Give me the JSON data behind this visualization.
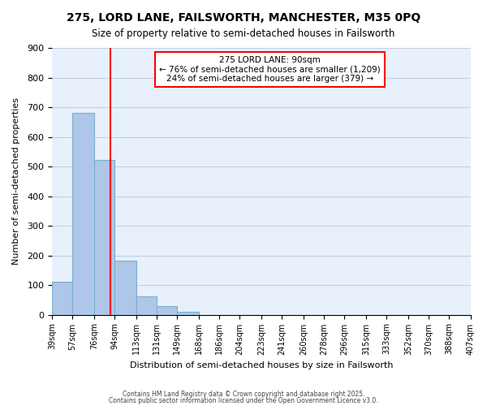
{
  "title1": "275, LORD LANE, FAILSWORTH, MANCHESTER, M35 0PQ",
  "title2": "Size of property relative to semi-detached houses in Failsworth",
  "xlabel": "Distribution of semi-detached houses by size in Failsworth",
  "ylabel": "Number of semi-detached properties",
  "bin_labels": [
    "39sqm",
    "57sqm",
    "76sqm",
    "94sqm",
    "113sqm",
    "131sqm",
    "149sqm",
    "168sqm",
    "186sqm",
    "204sqm",
    "223sqm",
    "241sqm",
    "260sqm",
    "278sqm",
    "296sqm",
    "315sqm",
    "333sqm",
    "352sqm",
    "370sqm",
    "388sqm",
    "407sqm"
  ],
  "bin_edges": [
    39,
    57,
    76,
    94,
    113,
    131,
    149,
    168,
    186,
    204,
    223,
    241,
    260,
    278,
    296,
    315,
    333,
    352,
    370,
    388,
    407
  ],
  "bar_heights": [
    112,
    681,
    523,
    182,
    62,
    29,
    10,
    0,
    0,
    0,
    0,
    0,
    0,
    0,
    0,
    0,
    0,
    0,
    0,
    0
  ],
  "bar_color": "#aec6e8",
  "bar_edge_color": "#7aaed0",
  "grid_color": "#c0d0e8",
  "background_color": "#e8f0fb",
  "vline_x": 90,
  "vline_color": "red",
  "ylim": [
    0,
    900
  ],
  "yticks": [
    0,
    100,
    200,
    300,
    400,
    500,
    600,
    700,
    800,
    900
  ],
  "annotation_title": "275 LORD LANE: 90sqm",
  "annotation_line1": "← 76% of semi-detached houses are smaller (1,209)",
  "annotation_line2": "24% of semi-detached houses are larger (379) →",
  "footer1": "Contains HM Land Registry data © Crown copyright and database right 2025.",
  "footer2": "Contains public sector information licensed under the Open Government Licence v3.0."
}
